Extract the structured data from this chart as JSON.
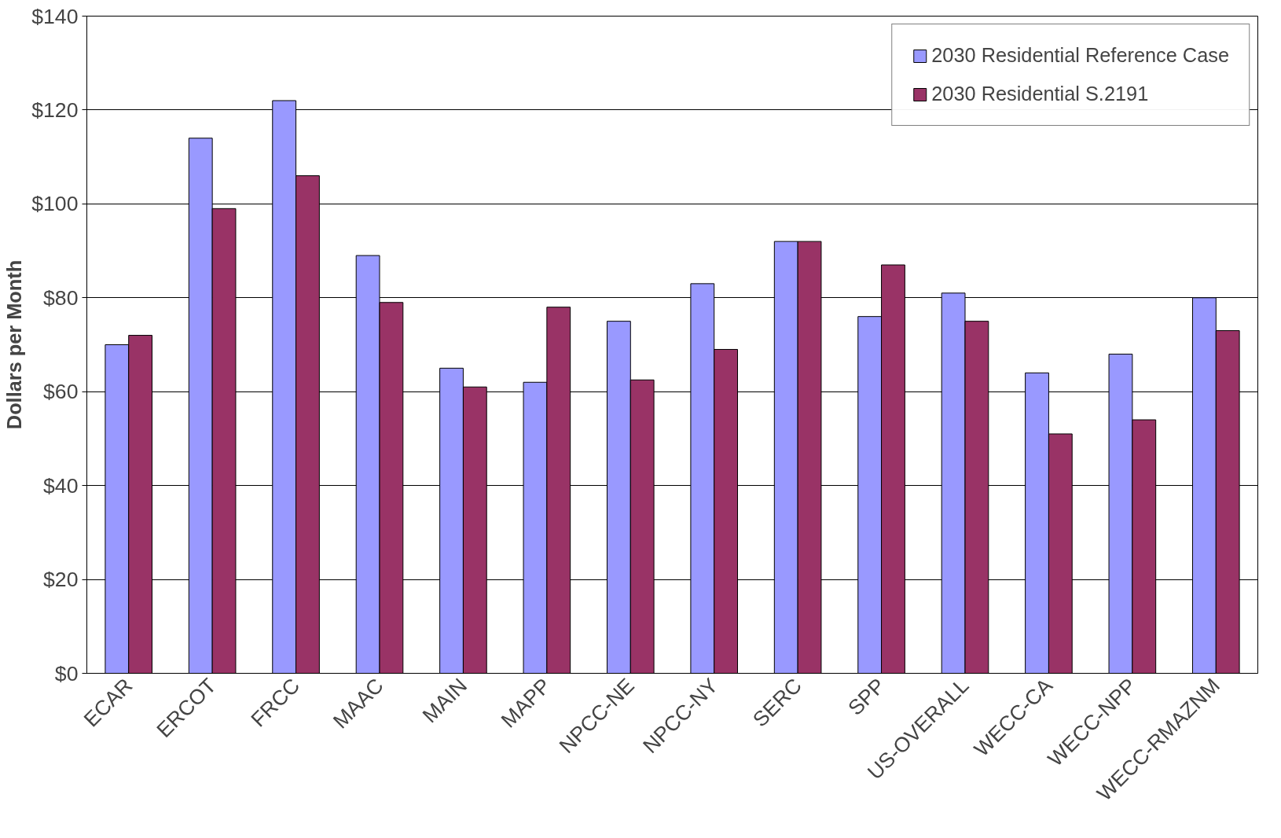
{
  "chart_data": {
    "type": "bar",
    "ylabel": "Dollars per Month",
    "categories": [
      "ECAR",
      "ERCOT",
      "FRCC",
      "MAAC",
      "MAIN",
      "MAPP",
      "NPCC-NE",
      "NPCC-NY",
      "SERC",
      "SPP",
      "US-OVERALL",
      "WECC-CA",
      "WECC-NPP",
      "WECC-RMAZNM"
    ],
    "series": [
      {
        "name": "2030 Residential Reference Case",
        "color": "#9999ff",
        "values": [
          70,
          114,
          122,
          89,
          65,
          62,
          75,
          83,
          92,
          76,
          81,
          64,
          68,
          80
        ]
      },
      {
        "name": "2030 Residential S.2191",
        "color": "#993366",
        "values": [
          72,
          99,
          106,
          79,
          61,
          78,
          62.5,
          69,
          92,
          87,
          75,
          51,
          54,
          73
        ]
      }
    ],
    "ylim": [
      0,
      140
    ],
    "yticks": [
      {
        "value": 0,
        "label": "$0"
      },
      {
        "value": 20,
        "label": "$20"
      },
      {
        "value": 40,
        "label": "$40"
      },
      {
        "value": 60,
        "label": "$60"
      },
      {
        "value": 80,
        "label": "$80"
      },
      {
        "value": 100,
        "label": "$100"
      },
      {
        "value": 120,
        "label": "$120"
      },
      {
        "value": 140,
        "label": "$140"
      }
    ],
    "grid": "y",
    "legend": "top right"
  }
}
